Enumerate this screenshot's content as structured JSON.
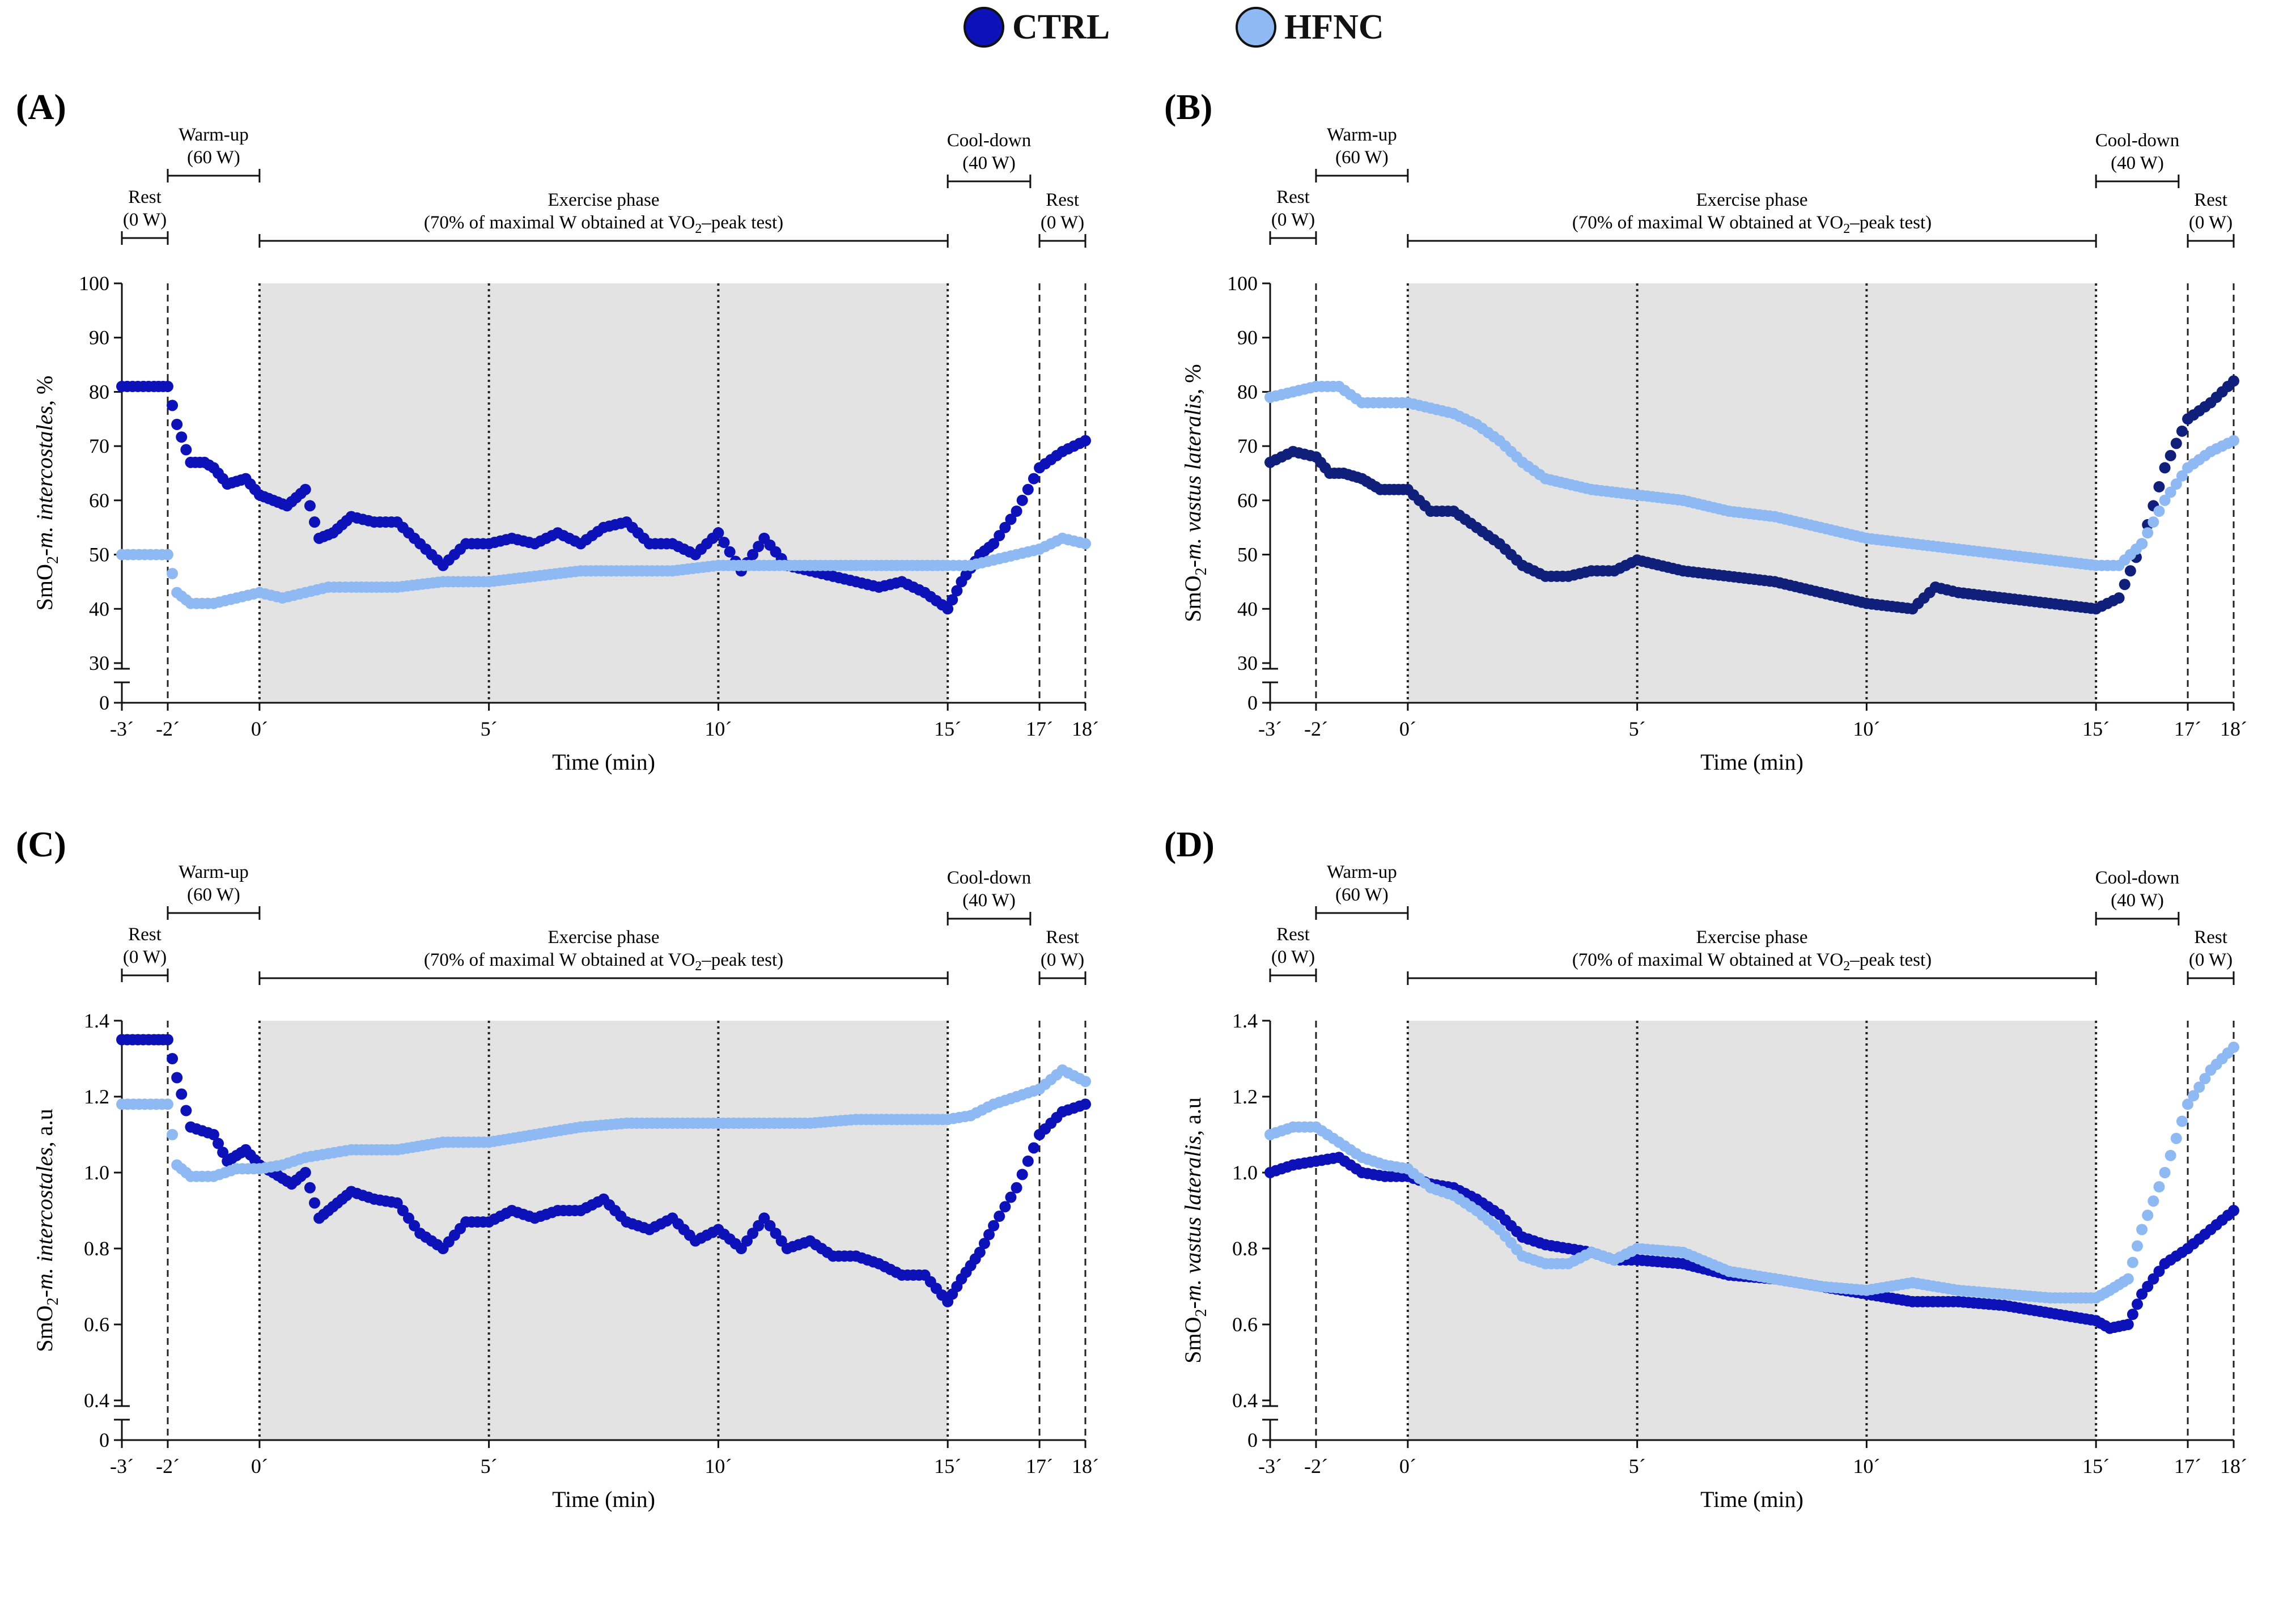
{
  "legend": {
    "items": [
      {
        "label": "CTRL",
        "color": "#0c12b8"
      },
      {
        "label": "HFNC",
        "color": "#8fb9f2"
      }
    ]
  },
  "colors": {
    "ctrl_royal": "#0c12b8",
    "ctrl_navy": "#0f1f7a",
    "hfnc": "#8fb9f2",
    "shade": "#e3e3e3"
  },
  "phases": {
    "rest1": {
      "name": "Rest",
      "load": "(0 W)"
    },
    "warmup": {
      "name": "Warm-up",
      "load": "(60 W)"
    },
    "exercise": {
      "name": "Exercise phase",
      "load_prefix": "(70% of maximal W obtained at VO",
      "load_sub": "2",
      "load_suffix": "–peak test)"
    },
    "cooldown": {
      "name": "Cool-down",
      "load": "(40 W)"
    },
    "rest2": {
      "name": "Rest",
      "load": "(0 W)"
    }
  },
  "x_axis": {
    "title": "Time (min)",
    "ticks": [
      {
        "value": -3,
        "label": "-3´"
      },
      {
        "value": -2,
        "label": "-2´"
      },
      {
        "value": 0,
        "label": "0´"
      },
      {
        "value": 5,
        "label": "5´"
      },
      {
        "value": 10,
        "label": "10´"
      },
      {
        "value": 15,
        "label": "15´"
      },
      {
        "value": 17,
        "label": "17´"
      },
      {
        "value": 18,
        "label": "18´"
      }
    ]
  },
  "chart_data": [
    {
      "panel": "(A)",
      "type": "scatter",
      "ylabel_parts": [
        "SmO",
        "2",
        "-",
        "m. intercostales",
        ", %"
      ],
      "xlabel": "Time (min)",
      "xlim": [
        -3,
        18
      ],
      "ylim": [
        0,
        100
      ],
      "yticks": [
        0,
        30,
        40,
        50,
        60,
        70,
        80,
        90,
        100
      ],
      "ytick_labels": [
        "0",
        "30",
        "40",
        "50",
        "60",
        "70",
        "80",
        "90",
        "100"
      ],
      "shaded_x": [
        0,
        15
      ],
      "vlines_dashed": [
        -2,
        17,
        18
      ],
      "vlines_dotted": [
        0,
        5,
        10,
        15
      ],
      "series": [
        {
          "name": "CTRL",
          "color": "#0c12b8",
          "x": [
            -3,
            -2.3,
            -2,
            -1.8,
            -1.5,
            -1.2,
            -1,
            -0.7,
            -0.3,
            0,
            0.3,
            0.6,
            1,
            1.3,
            1.6,
            2,
            2.5,
            3,
            3.5,
            4,
            4.5,
            5,
            5.5,
            6,
            6.5,
            7,
            7.5,
            8,
            8.5,
            9,
            9.5,
            10,
            10.5,
            11,
            11.5,
            12,
            12.5,
            13,
            13.5,
            14,
            14.5,
            15,
            15.3,
            15.7,
            16,
            16.5,
            17,
            17.5,
            18
          ],
          "values": [
            81,
            81,
            81,
            74,
            67,
            67,
            66,
            63,
            64,
            61,
            60,
            59,
            62,
            53,
            54,
            57,
            56,
            56,
            52,
            48,
            52,
            52,
            53,
            52,
            54,
            52,
            55,
            56,
            52,
            52,
            50,
            54,
            47,
            53,
            48,
            47,
            46,
            45,
            44,
            45,
            43,
            40,
            45,
            50,
            52,
            58,
            66,
            69,
            71
          ]
        },
        {
          "name": "HFNC",
          "color": "#8fb9f2",
          "x": [
            -3,
            -2.5,
            -2,
            -1.8,
            -1.5,
            -1,
            -0.5,
            0,
            0.5,
            1,
            1.5,
            2,
            3,
            4,
            5,
            6,
            7,
            8,
            9,
            10,
            11,
            12,
            13,
            14,
            15,
            15.5,
            16,
            16.5,
            17,
            17.5,
            18
          ],
          "values": [
            50,
            50,
            50,
            43,
            41,
            41,
            42,
            43,
            42,
            43,
            44,
            44,
            44,
            45,
            45,
            46,
            47,
            47,
            47,
            48,
            48,
            48,
            48,
            48,
            48,
            48,
            49,
            50,
            51,
            53,
            52
          ]
        }
      ]
    },
    {
      "panel": "(B)",
      "type": "scatter",
      "ylabel_parts": [
        "SmO",
        "2",
        "-",
        "m. vastus lateralis",
        ", %"
      ],
      "xlabel": "Time (min)",
      "xlim": [
        -3,
        18
      ],
      "ylim": [
        0,
        100
      ],
      "yticks": [
        0,
        30,
        40,
        50,
        60,
        70,
        80,
        90,
        100
      ],
      "ytick_labels": [
        "0",
        "30",
        "40",
        "50",
        "60",
        "70",
        "80",
        "90",
        "100"
      ],
      "shaded_x": [
        0,
        15
      ],
      "vlines_dashed": [
        -2,
        17,
        18
      ],
      "vlines_dotted": [
        0,
        5,
        10,
        15
      ],
      "series": [
        {
          "name": "CTRL",
          "color": "#0f1f7a",
          "x": [
            -3,
            -2.5,
            -2,
            -1.7,
            -1.4,
            -1,
            -0.6,
            -0.3,
            0,
            0.5,
            1,
            1.5,
            2,
            2.5,
            3,
            3.5,
            4,
            4.5,
            5,
            6,
            7,
            8,
            9,
            10,
            11,
            11.5,
            12,
            13,
            14,
            15,
            15.5,
            16,
            16.5,
            17,
            17.5,
            18
          ],
          "values": [
            67,
            69,
            68,
            65,
            65,
            64,
            62,
            62,
            62,
            58,
            58,
            55,
            52,
            48,
            46,
            46,
            47,
            47,
            49,
            47,
            46,
            45,
            43,
            41,
            40,
            44,
            43,
            42,
            41,
            40,
            42,
            52,
            66,
            75,
            78,
            82
          ]
        },
        {
          "name": "HFNC",
          "color": "#8fb9f2",
          "x": [
            -3,
            -2.5,
            -2,
            -1.5,
            -1,
            -0.5,
            0,
            0.5,
            1,
            1.5,
            2,
            2.5,
            3,
            4,
            5,
            6,
            7,
            8,
            9,
            10,
            11,
            12,
            13,
            14,
            15,
            15.5,
            16,
            16.5,
            17,
            17.5,
            18
          ],
          "values": [
            79,
            80,
            81,
            81,
            78,
            78,
            78,
            77,
            76,
            74,
            71,
            67,
            64,
            62,
            61,
            60,
            58,
            57,
            55,
            53,
            52,
            51,
            50,
            49,
            48,
            48,
            52,
            60,
            66,
            69,
            71
          ]
        }
      ]
    },
    {
      "panel": "(C)",
      "type": "scatter",
      "ylabel_parts": [
        "SmO",
        "2",
        "-",
        "m. intercostales",
        ", a.u"
      ],
      "xlabel": "Time (min)",
      "xlim": [
        -3,
        18
      ],
      "ylim": [
        0,
        1.4
      ],
      "yticks": [
        0,
        0.4,
        0.6,
        0.8,
        1.0,
        1.2,
        1.4
      ],
      "ytick_labels": [
        "0",
        "0.4",
        "0.6",
        "0.8",
        "1.0",
        "1.2",
        "1.4"
      ],
      "shaded_x": [
        0,
        15
      ],
      "vlines_dashed": [
        -2,
        17,
        18
      ],
      "vlines_dotted": [
        0,
        5,
        10,
        15
      ],
      "series": [
        {
          "name": "CTRL",
          "color": "#0c12b8",
          "x": [
            -3,
            -2.3,
            -2,
            -1.8,
            -1.5,
            -1,
            -0.7,
            -0.3,
            0,
            0.3,
            0.7,
            1,
            1.3,
            1.7,
            2,
            2.5,
            3,
            3.5,
            4,
            4.5,
            5,
            5.5,
            6,
            6.5,
            7,
            7.5,
            8,
            8.5,
            9,
            9.5,
            10,
            10.5,
            11,
            11.5,
            12,
            12.5,
            13,
            13.5,
            14,
            14.5,
            15,
            15.3,
            15.7,
            16,
            16.5,
            17,
            17.5,
            18
          ],
          "values": [
            1.35,
            1.35,
            1.35,
            1.25,
            1.12,
            1.1,
            1.03,
            1.06,
            1.02,
            1.0,
            0.97,
            1.0,
            0.88,
            0.92,
            0.95,
            0.93,
            0.92,
            0.84,
            0.8,
            0.87,
            0.87,
            0.9,
            0.88,
            0.9,
            0.9,
            0.93,
            0.87,
            0.85,
            0.88,
            0.82,
            0.85,
            0.8,
            0.88,
            0.8,
            0.82,
            0.78,
            0.78,
            0.76,
            0.73,
            0.73,
            0.66,
            0.72,
            0.79,
            0.86,
            0.96,
            1.1,
            1.16,
            1.18
          ]
        },
        {
          "name": "HFNC",
          "color": "#8fb9f2",
          "x": [
            -3,
            -2.5,
            -2,
            -1.8,
            -1.5,
            -1,
            -0.5,
            0,
            0.5,
            1,
            1.5,
            2,
            3,
            4,
            5,
            6,
            7,
            8,
            9,
            10,
            11,
            12,
            13,
            14,
            15,
            15.5,
            16,
            16.5,
            17,
            17.5,
            18
          ],
          "values": [
            1.18,
            1.18,
            1.18,
            1.02,
            0.99,
            0.99,
            1.01,
            1.01,
            1.02,
            1.04,
            1.05,
            1.06,
            1.06,
            1.08,
            1.08,
            1.1,
            1.12,
            1.13,
            1.13,
            1.13,
            1.13,
            1.13,
            1.14,
            1.14,
            1.14,
            1.15,
            1.18,
            1.2,
            1.22,
            1.27,
            1.24
          ]
        }
      ]
    },
    {
      "panel": "(D)",
      "type": "scatter",
      "ylabel_parts": [
        "SmO",
        "2",
        "-",
        "m. vastus lateralis",
        ", a.u"
      ],
      "xlabel": "Time (min)",
      "xlim": [
        -3,
        18
      ],
      "ylim": [
        0,
        1.4
      ],
      "yticks": [
        0,
        0.4,
        0.6,
        0.8,
        1.0,
        1.2,
        1.4
      ],
      "ytick_labels": [
        "0",
        "0.4",
        "0.6",
        "0.8",
        "1.0",
        "1.2",
        "1.4"
      ],
      "shaded_x": [
        0,
        15
      ],
      "vlines_dashed": [
        -2,
        17,
        18
      ],
      "vlines_dotted": [
        0,
        5,
        10,
        15
      ],
      "series": [
        {
          "name": "CTRL",
          "color": "#0c12b8",
          "x": [
            -3,
            -2.5,
            -2,
            -1.5,
            -1,
            -0.5,
            0,
            0.5,
            1,
            1.5,
            2,
            2.5,
            3,
            3.5,
            4,
            4.5,
            5,
            6,
            7,
            8,
            9,
            10,
            11,
            12,
            13,
            14,
            15,
            15.3,
            15.7,
            16,
            16.5,
            17,
            17.5,
            18
          ],
          "values": [
            1.0,
            1.02,
            1.03,
            1.04,
            1.0,
            0.99,
            0.99,
            0.97,
            0.96,
            0.93,
            0.89,
            0.83,
            0.81,
            0.8,
            0.79,
            0.77,
            0.77,
            0.76,
            0.73,
            0.72,
            0.7,
            0.68,
            0.66,
            0.66,
            0.65,
            0.63,
            0.61,
            0.59,
            0.6,
            0.68,
            0.76,
            0.8,
            0.85,
            0.9
          ]
        },
        {
          "name": "HFNC",
          "color": "#8fb9f2",
          "x": [
            -3,
            -2.5,
            -2,
            -1.5,
            -1,
            -0.5,
            0,
            0.5,
            1,
            1.5,
            2,
            2.5,
            3,
            3.5,
            4,
            4.5,
            5,
            6,
            7,
            8,
            9,
            10,
            11,
            12,
            13,
            14,
            15,
            15.3,
            15.7,
            16,
            16.5,
            17,
            17.5,
            18
          ],
          "values": [
            1.1,
            1.12,
            1.12,
            1.08,
            1.04,
            1.02,
            1.01,
            0.96,
            0.94,
            0.9,
            0.85,
            0.78,
            0.76,
            0.76,
            0.79,
            0.77,
            0.8,
            0.79,
            0.74,
            0.72,
            0.7,
            0.69,
            0.71,
            0.69,
            0.68,
            0.67,
            0.67,
            0.69,
            0.72,
            0.85,
            1.0,
            1.18,
            1.27,
            1.33
          ]
        }
      ]
    }
  ]
}
